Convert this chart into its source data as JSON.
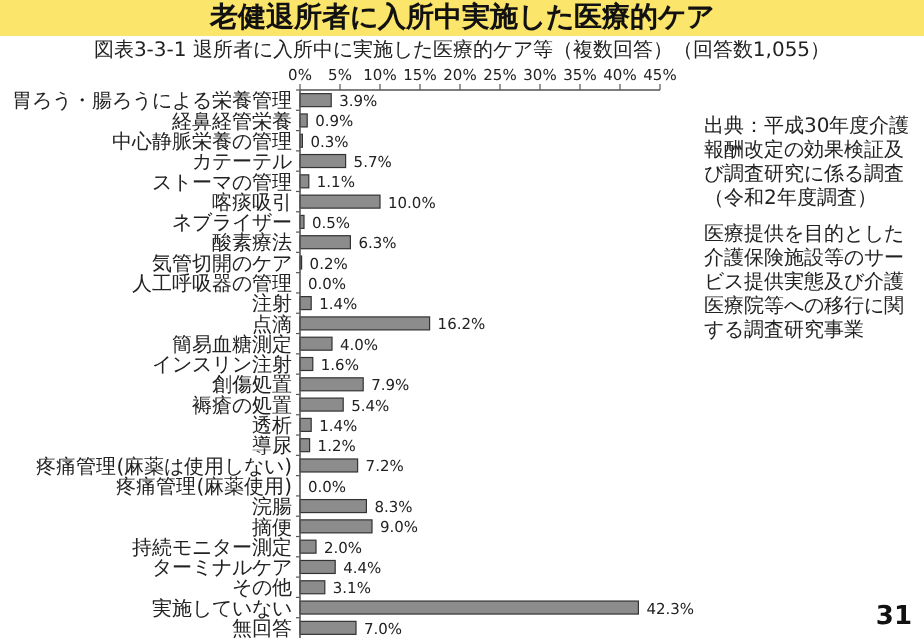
{
  "chart_data": {
    "type": "bar",
    "orientation": "horizontal",
    "title": "老健退所者に入所中実施した医療的ケア",
    "subtitle": "図表3-3-1 退所者に入所中に実施した医療的ケア等（複数回答）（回答数1,055）",
    "categories": [
      "胃ろう・腸ろうによる栄養管理",
      "経鼻経管栄養",
      "中心静脈栄養の管理",
      "カテーテル",
      "ストーマの管理",
      "喀痰吸引",
      "ネブライザー",
      "酸素療法",
      "気管切開のケア",
      "人工呼吸器の管理",
      "注射",
      "点滴",
      "簡易血糖測定",
      "インスリン注射",
      "創傷処置",
      "褥瘡の処置",
      "透析",
      "導尿",
      "疼痛管理(麻薬は使用しない)",
      "疼痛管理(麻薬使用)",
      "浣腸",
      "摘便",
      "持続モニター測定",
      "ターミナルケア",
      "その他",
      "実施していない",
      "無回答"
    ],
    "values": [
      3.9,
      0.9,
      0.3,
      5.7,
      1.1,
      10.0,
      0.5,
      6.3,
      0.2,
      0.0,
      1.4,
      16.2,
      4.0,
      1.6,
      7.9,
      5.4,
      1.4,
      1.2,
      7.2,
      0.0,
      8.3,
      9.0,
      2.0,
      4.4,
      3.1,
      42.3,
      7.0
    ],
    "value_labels": [
      "3.9%",
      "0.9%",
      "0.3%",
      "5.7%",
      "1.1%",
      "10.0%",
      "0.5%",
      "6.3%",
      "0.2%",
      "0.0%",
      "1.4%",
      "16.2%",
      "4.0%",
      "1.6%",
      "7.9%",
      "5.4%",
      "1.4%",
      "1.2%",
      "7.2%",
      "0.0%",
      "8.3%",
      "9.0%",
      "2.0%",
      "4.4%",
      "3.1%",
      "42.3%",
      "7.0%"
    ],
    "color": "#8c8c8c",
    "xlim": [
      0,
      45
    ],
    "xticks": [
      {
        "value": 0,
        "label": "0%"
      },
      {
        "value": 5,
        "label": "5%"
      },
      {
        "value": 10,
        "label": "10%"
      },
      {
        "value": 15,
        "label": "15%"
      },
      {
        "value": 20,
        "label": "20%"
      },
      {
        "value": 25,
        "label": "25%"
      },
      {
        "value": 30,
        "label": "30%"
      },
      {
        "value": 35,
        "label": "35%"
      },
      {
        "value": 40,
        "label": "40%"
      },
      {
        "value": 45,
        "label": "45%"
      }
    ],
    "annotations": [
      "出典：平成30年度介護報酬改定の効果検証及び調査研究に係る調査（令和2年度調査）",
      "医療提供を目的とした介護保険施設等のサービス提供実態及び介護医療院等への移行に関する調査研究事業",
      "31"
    ]
  }
}
